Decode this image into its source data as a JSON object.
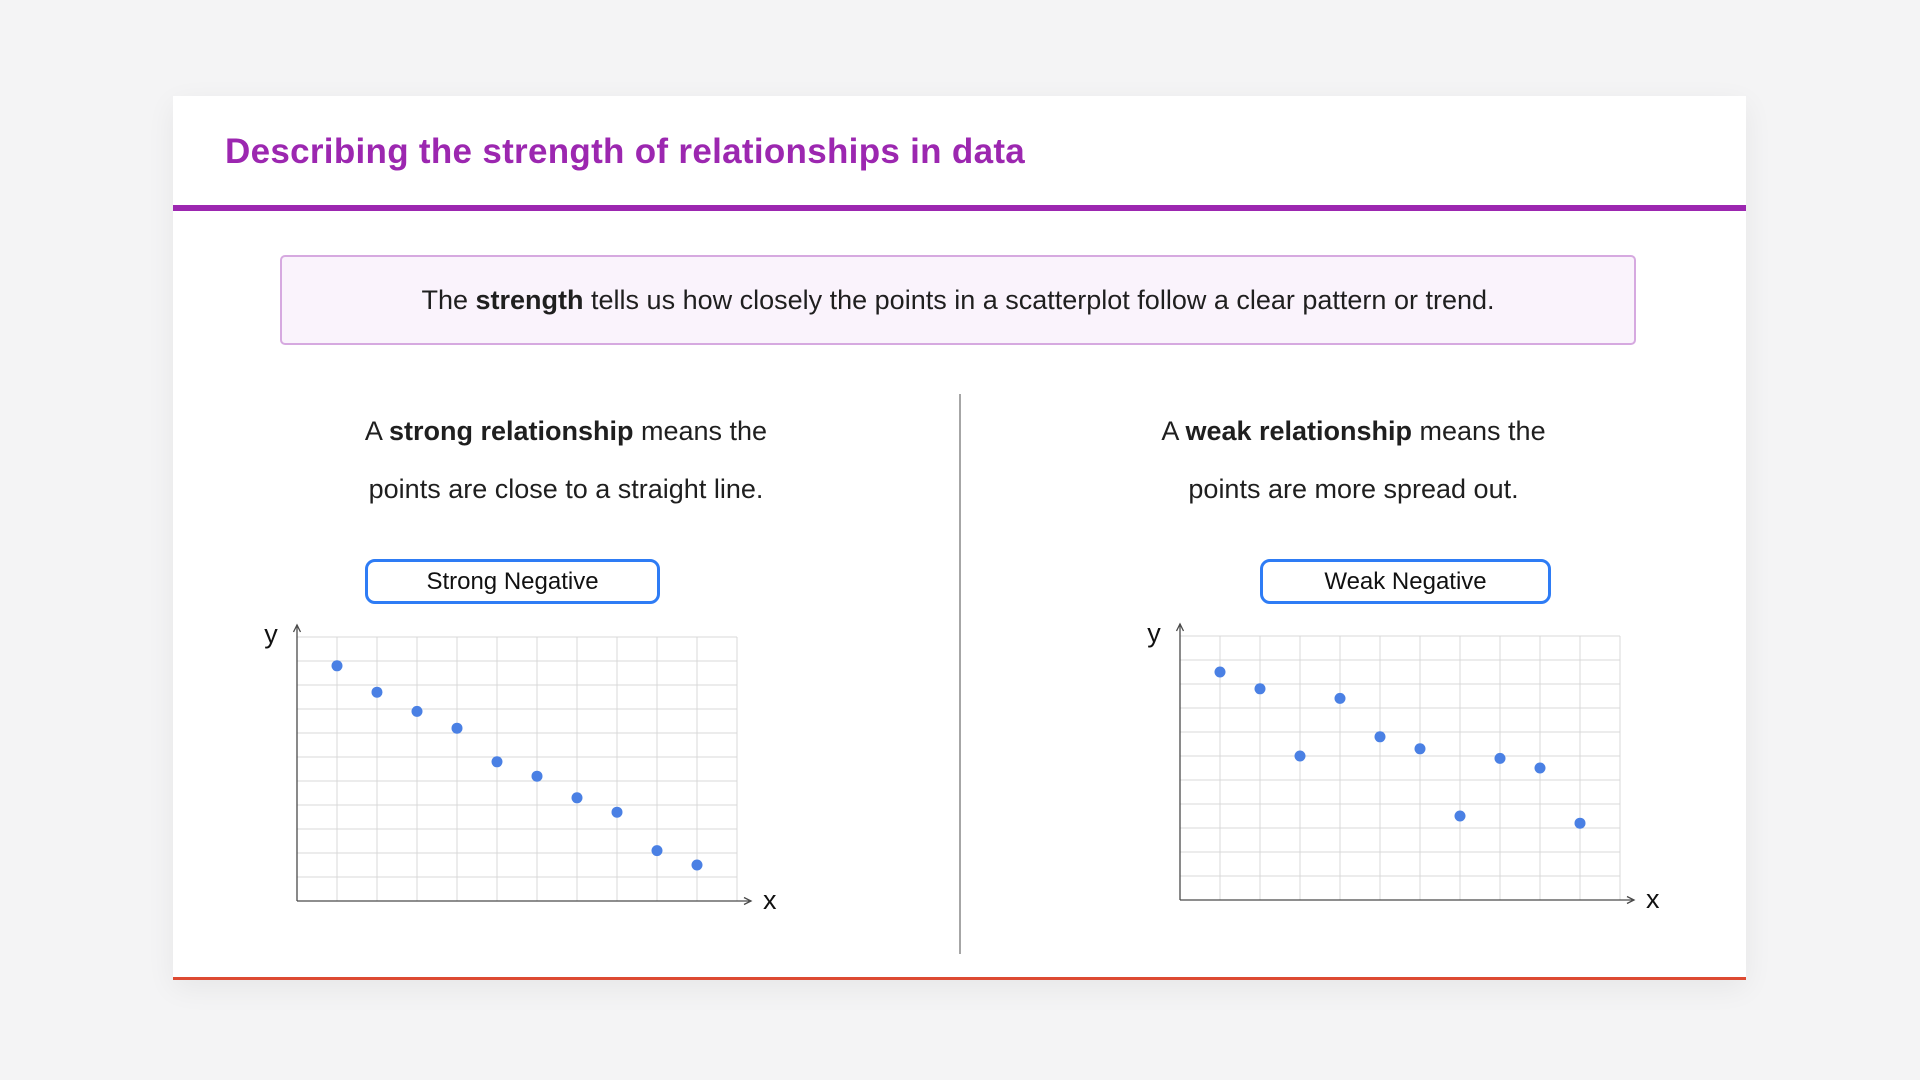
{
  "header": {
    "title": "Describing the strength of relationships in data"
  },
  "info_box": {
    "prefix": "The ",
    "bold": "strength",
    "suffix": " tells us how closely the points in a scatterplot follow a clear pattern or trend."
  },
  "columns": [
    {
      "desc_prefix": "A ",
      "desc_bold": "strong relationship",
      "desc_suffix": " means the",
      "desc_line2": "points are close to a straight line.",
      "badge": "Strong Negative"
    },
    {
      "desc_prefix": "A ",
      "desc_bold": "weak relationship",
      "desc_suffix": " means the",
      "desc_line2": "points are more spread out.",
      "badge": "Weak Negative"
    }
  ],
  "chart_data": [
    {
      "type": "scatter",
      "title": "Strong Negative",
      "xlabel": "x",
      "ylabel": "y",
      "xlim": [
        0,
        11
      ],
      "ylim": [
        0,
        11
      ],
      "grid": true,
      "legend": false,
      "points": [
        [
          1,
          9.8
        ],
        [
          2,
          8.7
        ],
        [
          3,
          7.9
        ],
        [
          4,
          7.2
        ],
        [
          5,
          5.8
        ],
        [
          6,
          5.2
        ],
        [
          7,
          4.3
        ],
        [
          8,
          3.7
        ],
        [
          9,
          2.1
        ],
        [
          10,
          1.5
        ]
      ]
    },
    {
      "type": "scatter",
      "title": "Weak Negative",
      "xlabel": "x",
      "ylabel": "y",
      "xlim": [
        0,
        11
      ],
      "ylim": [
        0,
        11
      ],
      "grid": true,
      "legend": false,
      "points": [
        [
          1,
          9.5
        ],
        [
          2,
          8.8
        ],
        [
          3,
          6.0
        ],
        [
          4,
          8.4
        ],
        [
          5,
          6.8
        ],
        [
          6,
          6.3
        ],
        [
          7,
          3.5
        ],
        [
          8,
          5.9
        ],
        [
          9,
          5.5
        ],
        [
          10,
          3.2
        ]
      ]
    }
  ],
  "colors": {
    "title": "#9c27b0",
    "rule": "#9c27b0",
    "info_border": "#d6a9e0",
    "info_bg": "#faf3fc",
    "badge_border": "#2e7cf5",
    "point": "#4a80e4",
    "grid_line": "#d9d9d9",
    "axis": "#4a4a4a",
    "divider": "#a6a6a6",
    "bottom_rule": "#dd4a32",
    "text": "#1f1f1f",
    "page_bg": "#f4f4f5"
  }
}
